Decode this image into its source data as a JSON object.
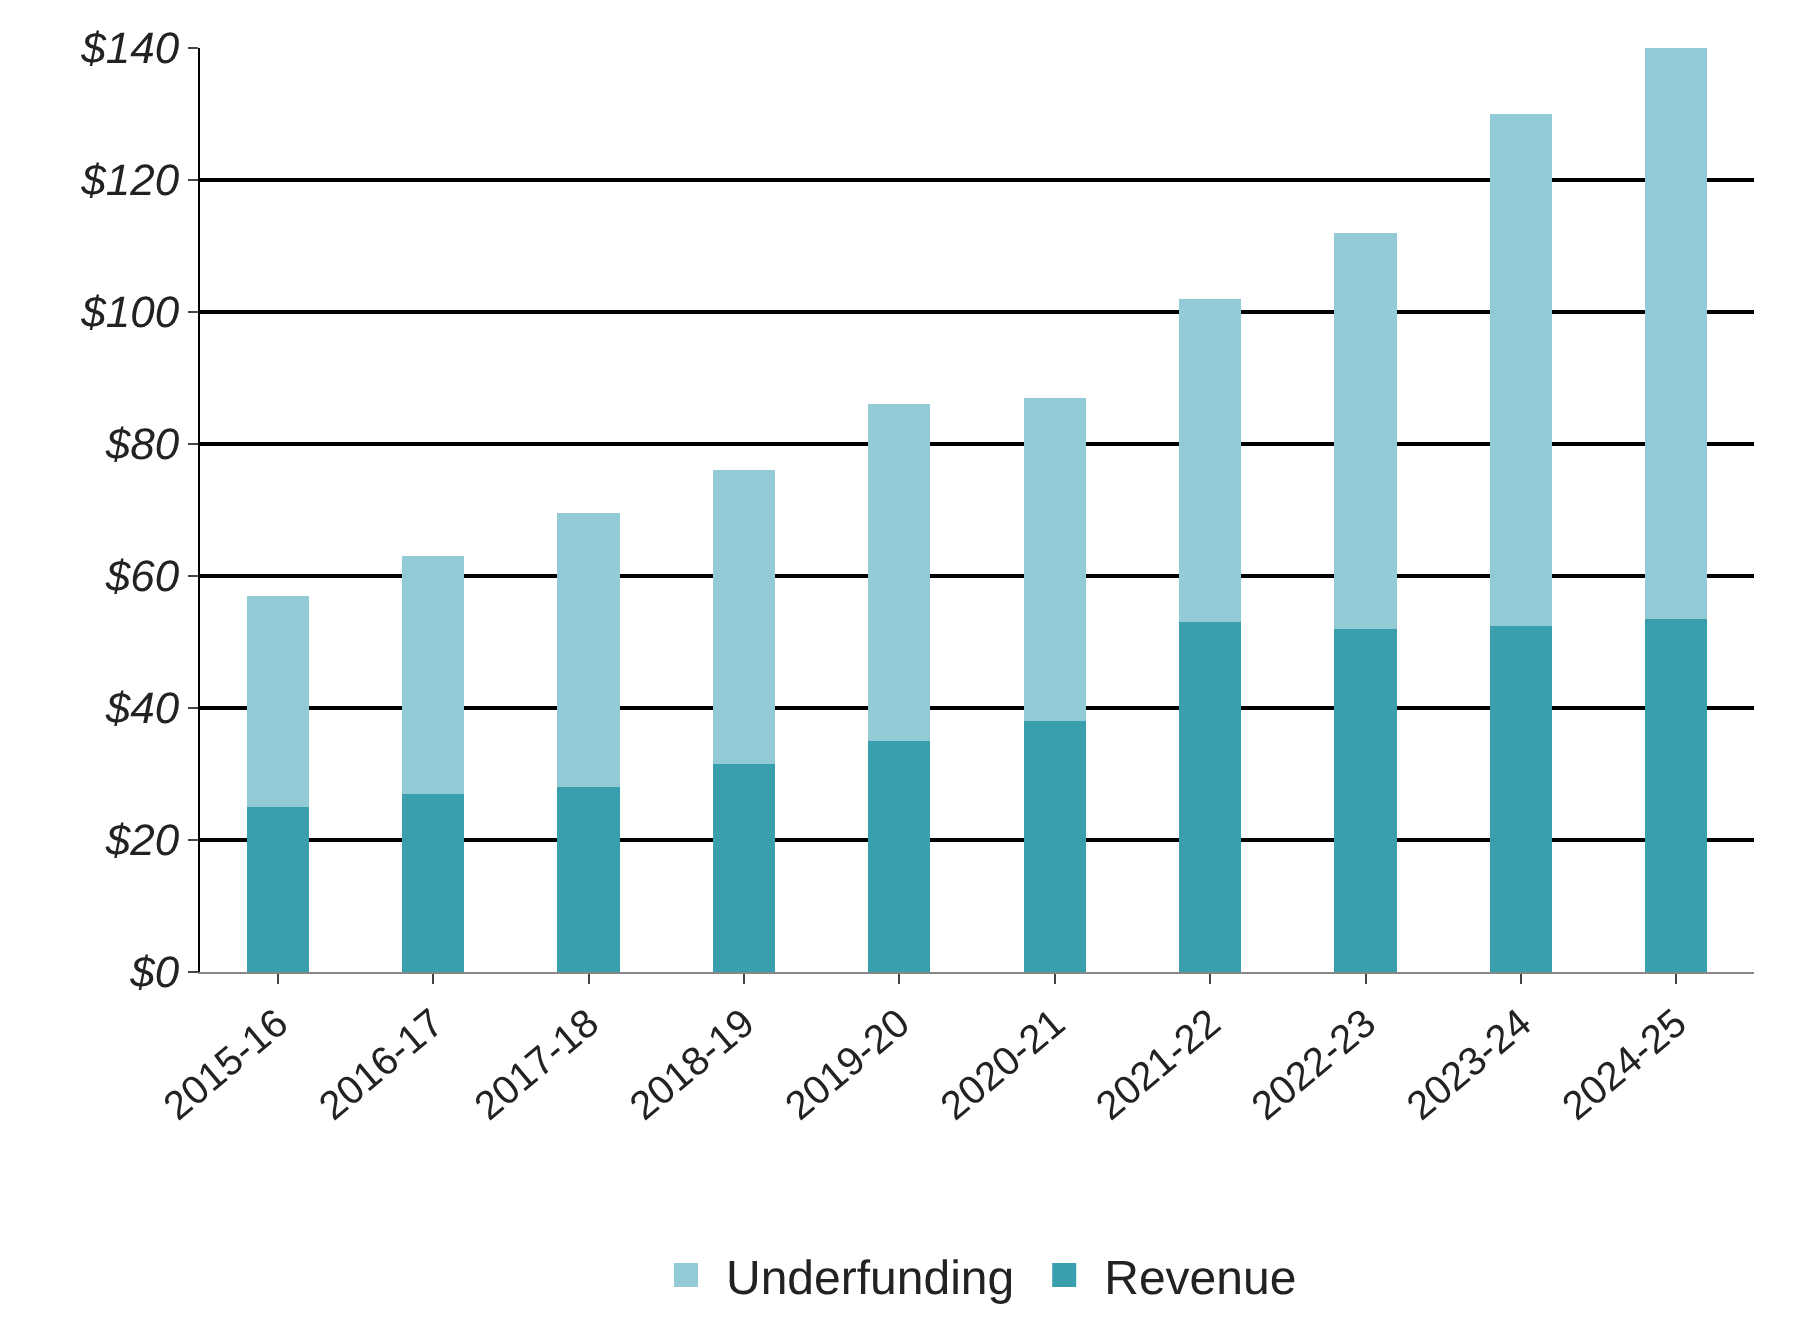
{
  "chart_data": {
    "type": "bar",
    "stacked": true,
    "categories": [
      "2015-16",
      "2016-17",
      "2017-18",
      "2018-19",
      "2019-20",
      "2020-21",
      "2021-22",
      "2022-23",
      "2023-24",
      "2024-25"
    ],
    "series": [
      {
        "name": "Revenue",
        "color": "#3a9fad",
        "values": [
          25,
          27,
          28,
          31.5,
          35,
          38,
          53,
          52,
          52.5,
          53.5
        ]
      },
      {
        "name": "Underfunding",
        "color": "#92cbd6",
        "values": [
          32,
          36,
          41.5,
          44.5,
          51,
          49,
          49,
          60,
          77.5,
          86.5
        ]
      }
    ],
    "ylim": [
      0,
      140
    ],
    "yticks": [
      {
        "value": 0,
        "label": "$0"
      },
      {
        "value": 20,
        "label": "$20"
      },
      {
        "value": 40,
        "label": "$40"
      },
      {
        "value": 60,
        "label": "$60"
      },
      {
        "value": 80,
        "label": "$80"
      },
      {
        "value": 100,
        "label": "$100"
      },
      {
        "value": 120,
        "label": "$120"
      },
      {
        "value": 140,
        "label": "$140"
      }
    ],
    "grid": "y",
    "legend": "bottom"
  }
}
